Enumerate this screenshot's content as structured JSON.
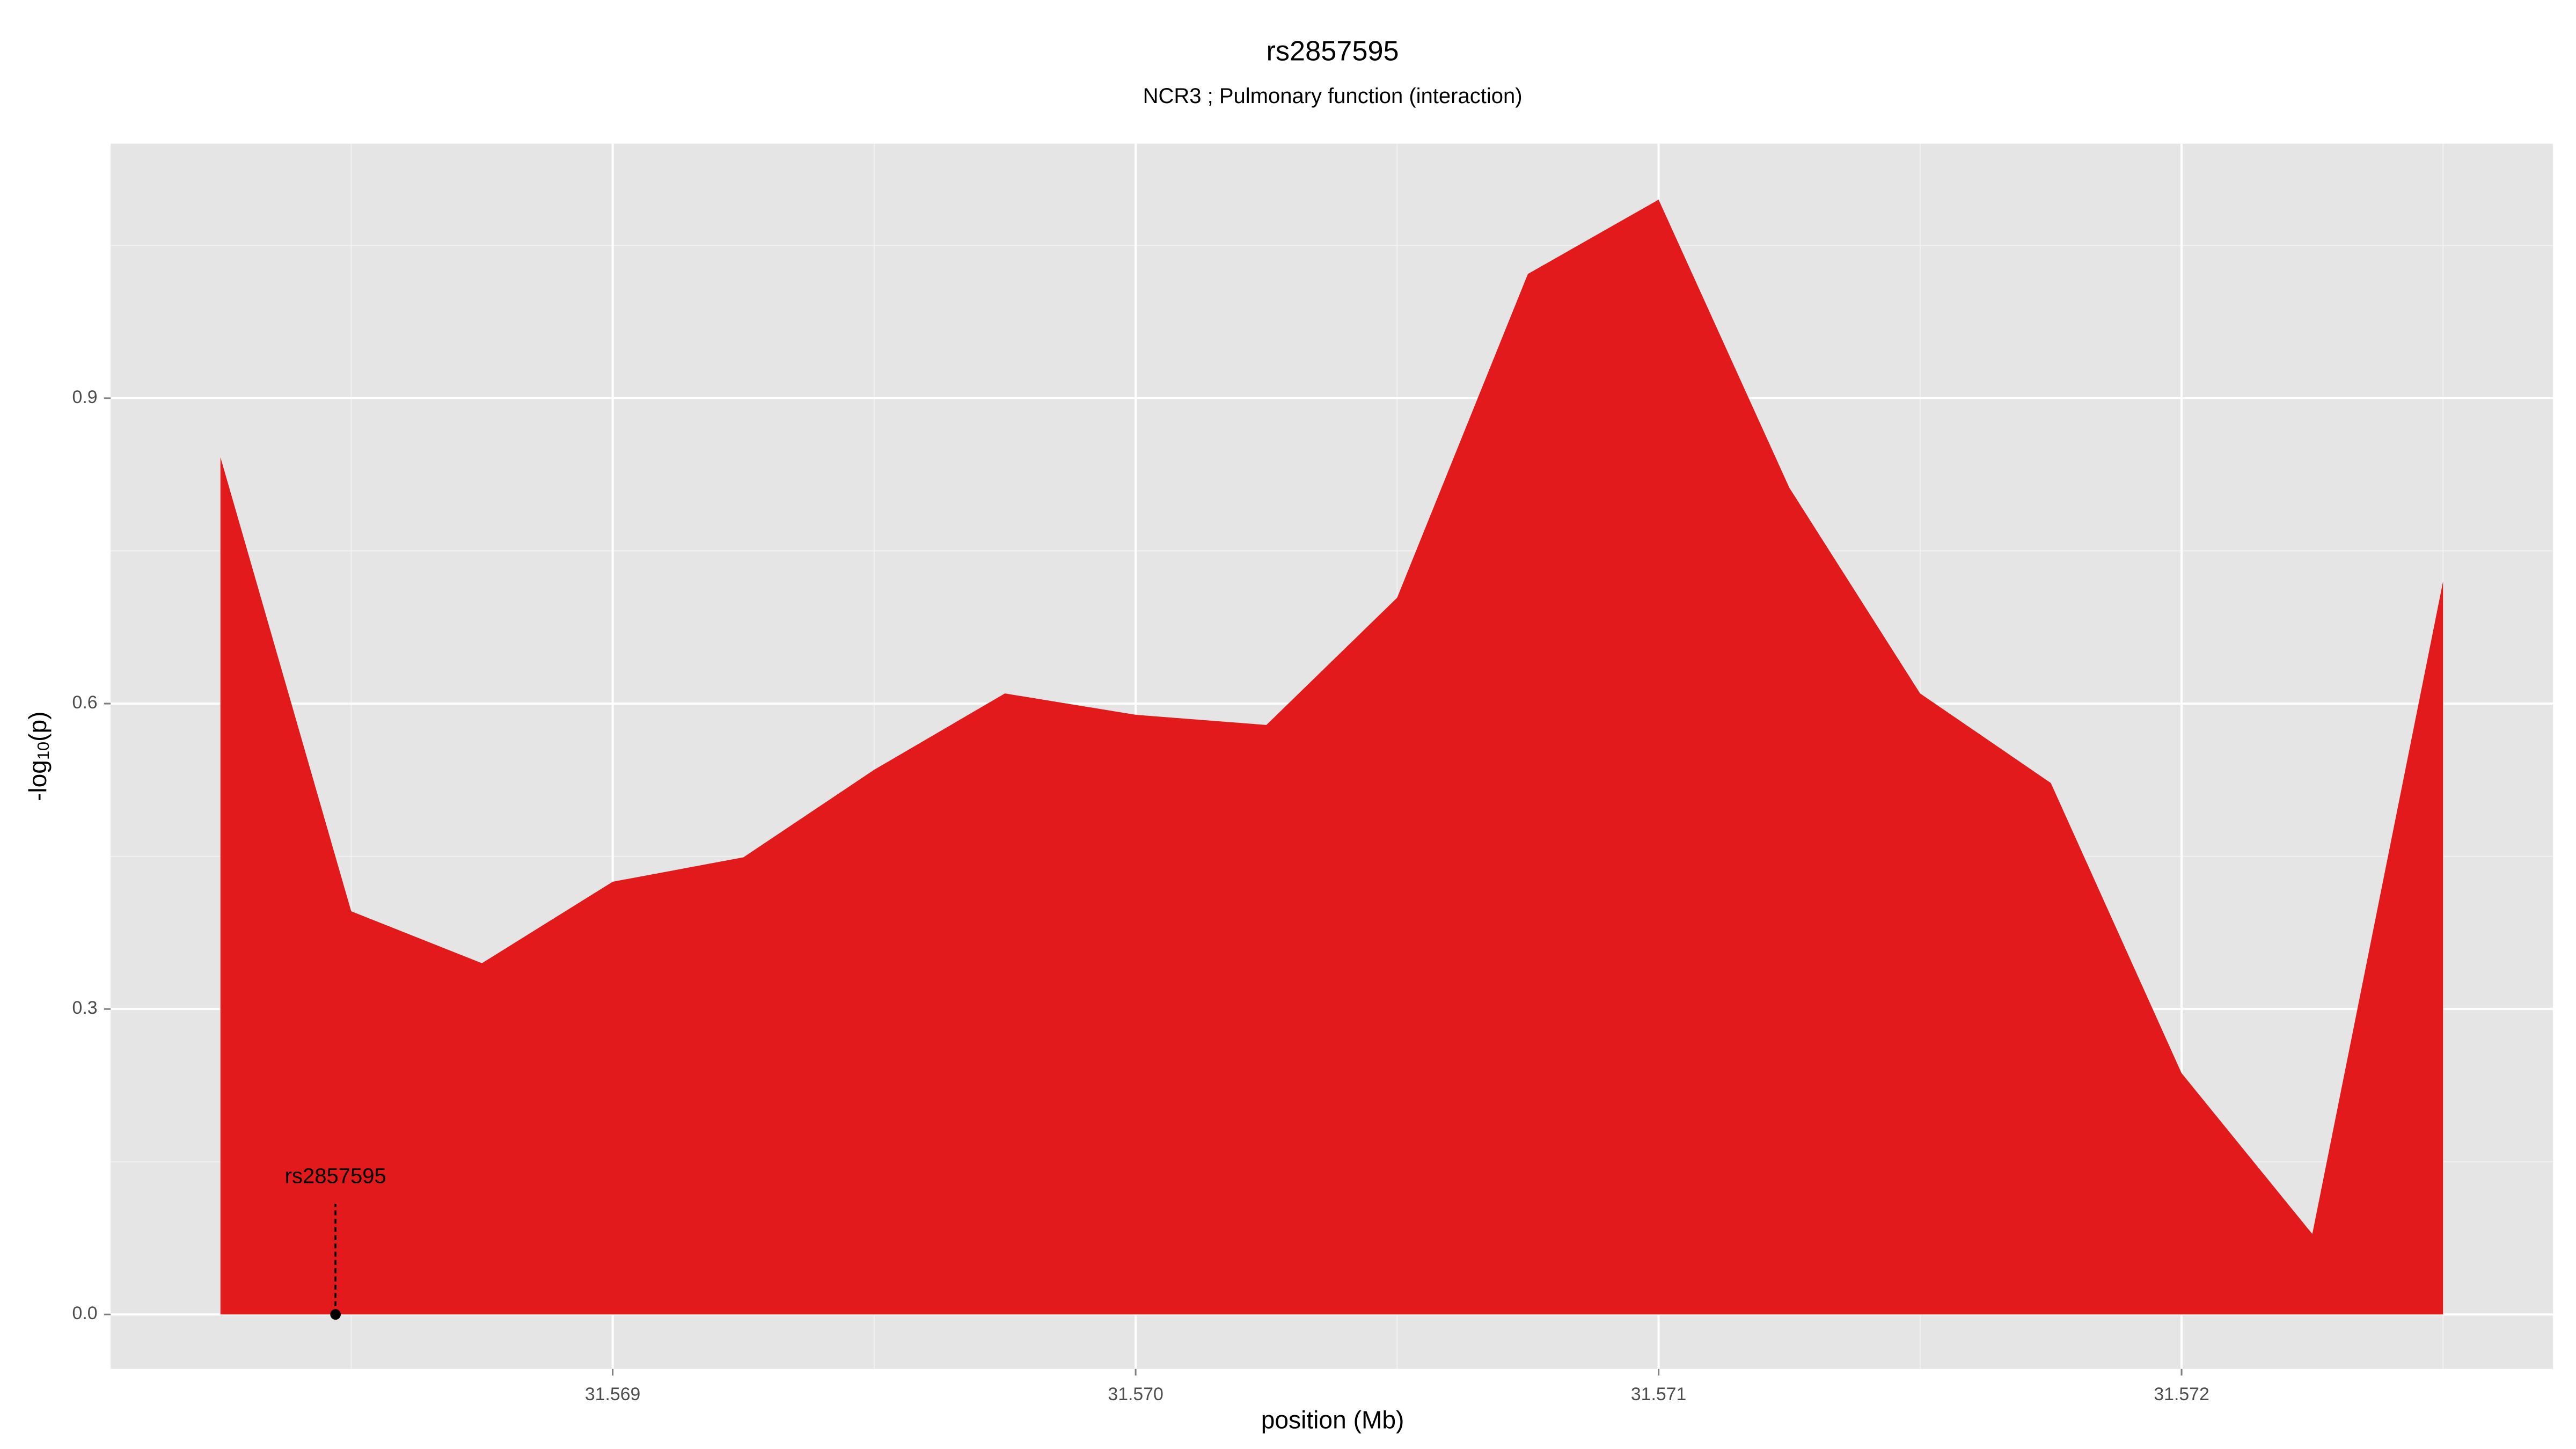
{
  "chart_data": {
    "type": "area",
    "title": "rs2857595",
    "subtitle": "NCR3 ; Pulmonary function (interaction)",
    "xlabel": "position (Mb)",
    "ylabel": {
      "text": "-log",
      "subscript": "10",
      "suffix": "(p)"
    },
    "x": [
      31.56825,
      31.5685,
      31.56875,
      31.569,
      31.56925,
      31.5695,
      31.56975,
      31.57,
      31.57025,
      31.5705,
      31.57075,
      31.571,
      31.57125,
      31.5715,
      31.57175,
      31.572,
      31.57225,
      31.5725
    ],
    "values": [
      0.842,
      0.396,
      0.345,
      0.425,
      0.449,
      0.535,
      0.61,
      0.589,
      0.579,
      0.704,
      1.022,
      1.095,
      0.812,
      0.61,
      0.522,
      0.237,
      0.079,
      0.72
    ],
    "color": "#e31a1c",
    "xlim": [
      31.56804,
      31.57271
    ],
    "ylim": [
      -0.0535,
      1.15
    ],
    "xticks": [
      31.569,
      {
        "value": 31.57,
        "label": "31.570"
      },
      31.571,
      31.572
    ],
    "yticks": [
      {
        "value": 0,
        "label": "0.0"
      },
      0.3,
      0.6,
      0.9
    ],
    "grid": true,
    "annotation": {
      "label": "rs2857595",
      "x": 31.56847,
      "y": 0
    }
  }
}
